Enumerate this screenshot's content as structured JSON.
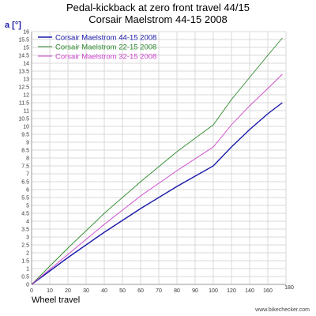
{
  "chart_data": {
    "type": "line",
    "title": "Pedal-kickback at zero front travel 44/15",
    "subtitle": "Corsair Maelstrom 44-15 2008",
    "ylabel": "a [°]",
    "xlabel": "Wheel travel",
    "xlim": [
      0,
      180
    ],
    "ylim": [
      0,
      16
    ],
    "x_ticks": [
      0,
      10,
      20,
      30,
      40,
      50,
      60,
      70,
      80,
      90,
      100,
      120,
      140,
      160,
      180
    ],
    "y_ticks": [
      0,
      0.5,
      1,
      1.5,
      2,
      2.5,
      3,
      3.5,
      4,
      4.5,
      5,
      5.5,
      6,
      6.5,
      7,
      7.5,
      8,
      8.5,
      9,
      9.5,
      10,
      10.5,
      11,
      11.5,
      12,
      12.5,
      13,
      13.5,
      14,
      14.5,
      15,
      15.5,
      16
    ],
    "grid": true,
    "legend_position": "top-left",
    "series": [
      {
        "name": "Corsair Maelstrom 44-15 2008",
        "color": "#1a1aaa",
        "x": [
          0,
          20,
          40,
          60,
          80,
          100,
          120,
          140,
          160,
          176
        ],
        "y": [
          0,
          1.7,
          3.3,
          4.8,
          6.2,
          7.5,
          8.7,
          9.8,
          10.8,
          11.5
        ]
      },
      {
        "name": "Corsair Maelstrom 22-15 2008",
        "color": "#2e8b2e",
        "x": [
          0,
          20,
          40,
          60,
          80,
          100,
          120,
          140,
          160,
          176
        ],
        "y": [
          0,
          2.3,
          4.5,
          6.5,
          8.4,
          10.1,
          11.7,
          13.1,
          14.5,
          15.6
        ]
      },
      {
        "name": "Corsair Maelstrom 32-15 2008",
        "color": "#cc44cc",
        "x": [
          0,
          20,
          40,
          60,
          80,
          100,
          120,
          140,
          160,
          176
        ],
        "y": [
          0,
          1.9,
          3.8,
          5.6,
          7.2,
          8.7,
          10.1,
          11.3,
          12.4,
          13.3
        ]
      }
    ]
  },
  "credit": "www.bikechecker.com"
}
